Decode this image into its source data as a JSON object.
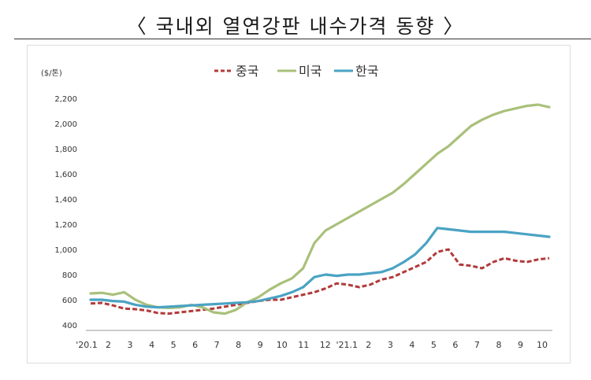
{
  "title": "〈 국내외 열연강판 내수가격 동향 〉",
  "chart_data": {
    "type": "line",
    "ylabel": "($/톤)",
    "ylim": [
      400,
      2200
    ],
    "yticks": [
      "400",
      "600",
      "800",
      "1,000",
      "1,200",
      "1,400",
      "1,600",
      "1,800",
      "2,000",
      "2,200"
    ],
    "xtick_labels": [
      "'20.1",
      "2",
      "3",
      "4",
      "5",
      "6",
      "7",
      "8",
      "9",
      "10",
      "11",
      "12",
      "'21.1",
      "2",
      "3",
      "4",
      "5",
      "6",
      "7",
      "8",
      "9",
      "10"
    ],
    "grid": false,
    "legend_position": "top",
    "series": [
      {
        "name": "중국",
        "color": "#b23a3a",
        "dash": true,
        "values": [
          570,
          575,
          555,
          530,
          525,
          515,
          495,
          490,
          500,
          510,
          520,
          530,
          545,
          560,
          575,
          590,
          600,
          600,
          620,
          640,
          660,
          690,
          730,
          720,
          700,
          720,
          760,
          780,
          820,
          860,
          900,
          980,
          1000,
          880,
          870,
          850,
          900,
          930,
          910,
          900,
          920,
          930
        ]
      },
      {
        "name": "미국",
        "color": "#a9c07a",
        "dash": false,
        "values": [
          650,
          655,
          640,
          660,
          600,
          560,
          540,
          535,
          540,
          560,
          540,
          500,
          490,
          520,
          580,
          620,
          680,
          730,
          770,
          850,
          1050,
          1150,
          1200,
          1250,
          1300,
          1350,
          1400,
          1450,
          1520,
          1600,
          1680,
          1760,
          1820,
          1900,
          1980,
          2030,
          2070,
          2100,
          2120,
          2140,
          2150,
          2130
        ]
      },
      {
        "name": "한국",
        "color": "#4aa3c3",
        "dash": false,
        "values": [
          600,
          600,
          590,
          585,
          560,
          545,
          540,
          545,
          550,
          555,
          560,
          565,
          570,
          575,
          580,
          590,
          610,
          630,
          660,
          700,
          780,
          800,
          790,
          800,
          800,
          810,
          820,
          850,
          900,
          960,
          1050,
          1170,
          1160,
          1150,
          1140,
          1140,
          1140,
          1140,
          1130,
          1120,
          1110,
          1100
        ]
      }
    ]
  }
}
